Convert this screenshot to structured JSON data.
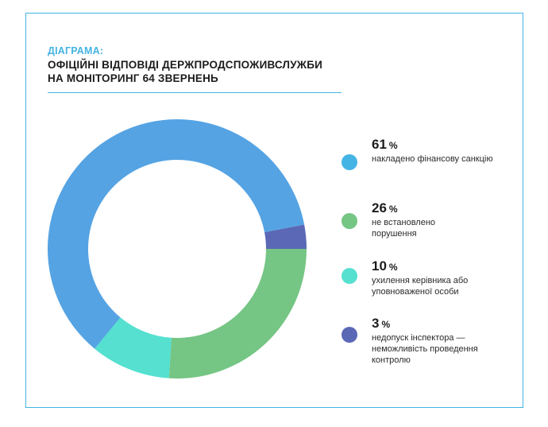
{
  "header": {
    "eyebrow": "ДІАГРАМА:",
    "title_line1": "ОФІЦІЙНІ ВІДПОВІДІ ДЕРЖПРОДСПОЖИВСЛУЖБИ",
    "title_line2": "НА МОНІТОРИНГ 64 ЗВЕРНЕНЬ"
  },
  "colors": {
    "accent": "#44b4e0",
    "rule": "#44b4e0"
  },
  "chart_data": {
    "type": "pie",
    "style": "donut",
    "title": "ОФІЦІЙНІ ВІДПОВІДІ ДЕРЖПРОДСПОЖИВСЛУЖБИ НА МОНІТОРИНГ 64 ЗВЕРНЕНЬ",
    "unit": "%",
    "slices": [
      {
        "value": "61",
        "unit": "%",
        "label": "накладено фінансову санкцію",
        "color": "#55a3e3",
        "legend_color": "#44b4e5"
      },
      {
        "value": "26",
        "unit": "%",
        "label": "не встановлено порушення",
        "color": "#75c584",
        "legend_color": "#75c584"
      },
      {
        "value": "10",
        "unit": "%",
        "label": "ухилення керівника або уповноваженої особи",
        "color": "#55e0d0",
        "legend_color": "#55e0d0"
      },
      {
        "value": "3",
        "unit": "%",
        "label": "недопуск інспектора — неможливість проведення контролю",
        "color": "#5b68b5",
        "legend_color": "#5b68b5"
      }
    ],
    "order_clockwise_from_3_oclock": [
      3,
      1,
      2,
      0
    ]
  }
}
